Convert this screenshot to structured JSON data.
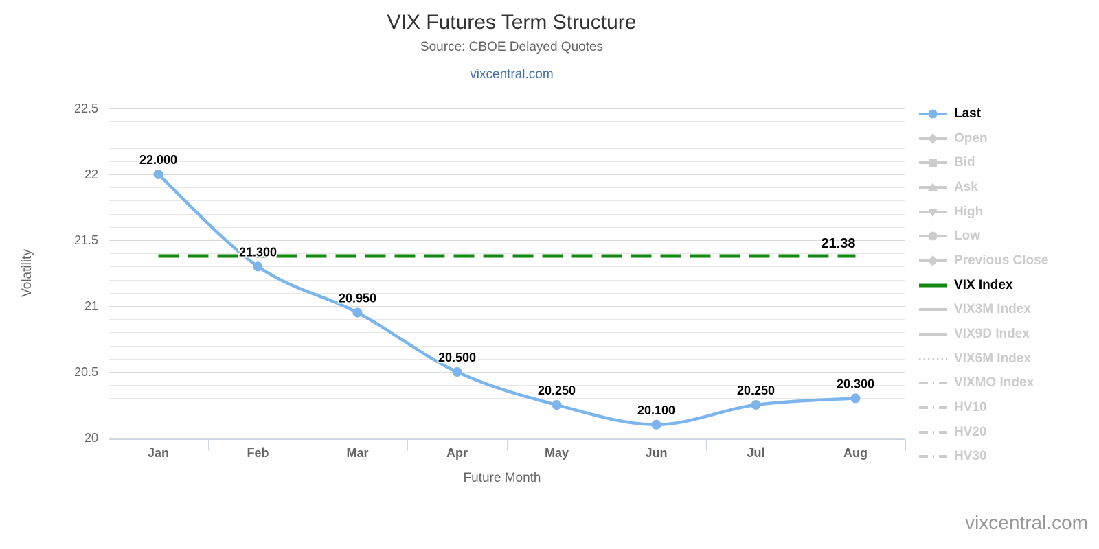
{
  "header": {
    "title": "VIX Futures Term Structure",
    "subtitle": "Source: CBOE Delayed Quotes",
    "link": "vixcentral.com"
  },
  "watermark": "vixcentral.com",
  "colors": {
    "last_series": "#7cb5ec",
    "vix_index": "#128a12",
    "inactive_legend": "#cccccc",
    "active_legend_text": "#000000",
    "axis_text": "#666666",
    "data_label_text": "#000000",
    "grid_major": "#d9d9d9",
    "grid_minor": "#e8e8e8",
    "axis_line": "#ccd6eb"
  },
  "chart_data": {
    "type": "line",
    "title": "VIX Futures Term Structure",
    "subtitle": "Source: CBOE Delayed Quotes",
    "xlabel": "Future Month",
    "ylabel": "Volatility",
    "categories": [
      "Jan",
      "Feb",
      "Mar",
      "Apr",
      "May",
      "Jun",
      "Jul",
      "Aug"
    ],
    "series": [
      {
        "name": "Last",
        "kind": "spline",
        "values": [
          22.0,
          21.3,
          20.95,
          20.5,
          20.25,
          20.1,
          20.25,
          20.3
        ],
        "labels": [
          "22.000",
          "21.300",
          "20.950",
          "20.500",
          "20.250",
          "20.100",
          "20.250",
          "20.300"
        ]
      },
      {
        "name": "VIX Index",
        "kind": "horizontal-dashed",
        "value": 21.38,
        "label": "21.38"
      }
    ],
    "ylim": [
      20,
      22.5
    ],
    "yticks": [
      20,
      20.5,
      21,
      21.5,
      22,
      22.5
    ],
    "ytick_labels": [
      "20",
      "20.5",
      "21",
      "21.5",
      "22",
      "22.5"
    ],
    "minor_tick_interval": 0.1,
    "grid": true,
    "legend_position": "right"
  },
  "legend": {
    "items": [
      {
        "label": "Last",
        "state": "active",
        "line": "solid",
        "marker": "circle"
      },
      {
        "label": "Open",
        "state": "inactive",
        "line": "solid",
        "marker": "diamond"
      },
      {
        "label": "Bid",
        "state": "inactive",
        "line": "solid",
        "marker": "square"
      },
      {
        "label": "Ask",
        "state": "inactive",
        "line": "solid",
        "marker": "triangle-up"
      },
      {
        "label": "High",
        "state": "inactive",
        "line": "solid",
        "marker": "triangle-down"
      },
      {
        "label": "Low",
        "state": "inactive",
        "line": "solid",
        "marker": "circle"
      },
      {
        "label": "Previous Close",
        "state": "inactive",
        "line": "solid",
        "marker": "diamond"
      },
      {
        "label": "VIX Index",
        "state": "active",
        "line": "solid",
        "marker": null
      },
      {
        "label": "VIX3M Index",
        "state": "inactive",
        "line": "solid",
        "marker": null
      },
      {
        "label": "VIX9D Index",
        "state": "inactive",
        "line": "solid",
        "marker": null
      },
      {
        "label": "VIX6M Index",
        "state": "inactive",
        "line": "dotted",
        "marker": null
      },
      {
        "label": "VIXMO Index",
        "state": "inactive",
        "line": "dashdot",
        "marker": null
      },
      {
        "label": "HV10",
        "state": "inactive",
        "line": "dashdot",
        "marker": null
      },
      {
        "label": "HV20",
        "state": "inactive",
        "line": "dashdot",
        "marker": null
      },
      {
        "label": "HV30",
        "state": "inactive",
        "line": "dashdot",
        "marker": null
      }
    ]
  }
}
